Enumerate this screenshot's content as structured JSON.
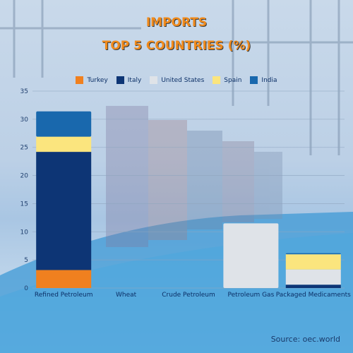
{
  "title": [
    "IMPORTS",
    "TOP 5 COUNTRIES (%)"
  ],
  "source": "Source: oec.world",
  "colors": {
    "Turkey": "#f0801f",
    "Italy": "#0d3575",
    "United States": "#dfe3e8",
    "Spain": "#fbe57e",
    "India": "#1968ad"
  },
  "chart_data": {
    "type": "bar",
    "stacked": true,
    "categories": [
      "Refined Petroleum",
      "Wheat",
      "Crude Petroleum",
      "Petroleum Gas",
      "Packaged Medicaments"
    ],
    "series": [
      {
        "name": "Turkey",
        "values": [
          3.2,
          0,
          0,
          0,
          0
        ]
      },
      {
        "name": "Italy",
        "values": [
          21.0,
          0,
          0,
          0,
          0.6
        ]
      },
      {
        "name": "United States",
        "values": [
          0,
          0,
          0,
          11.5,
          2.7
        ]
      },
      {
        "name": "Spain",
        "values": [
          2.7,
          0,
          0,
          0,
          2.7
        ]
      },
      {
        "name": "India",
        "values": [
          4.5,
          0,
          0,
          0,
          0.2
        ]
      }
    ],
    "y_ticks": [
      0,
      5,
      10,
      15,
      20,
      25,
      30,
      35
    ],
    "ylim": [
      0,
      35
    ],
    "grid": true,
    "legend_position": "top"
  }
}
